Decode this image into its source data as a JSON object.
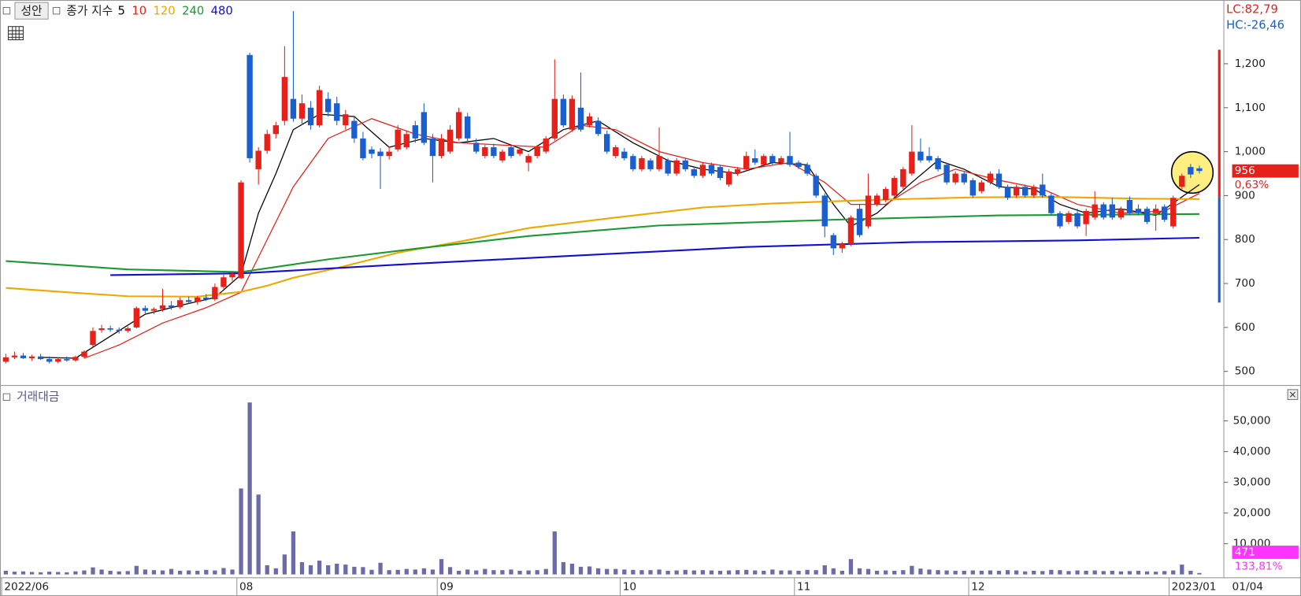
{
  "header": {
    "stock_name": "성안",
    "ma_label": "종가 지수",
    "lc_label": "LC:82,79",
    "hc_label": "HC:-26,46"
  },
  "chart_data": [
    {
      "type": "candlestick",
      "up_color": "#e8201a",
      "down_color": "#1a5fd0",
      "ylim": [
        468,
        1345
      ],
      "yticks": [
        {
          "value": 1200,
          "label": "1,200"
        },
        {
          "value": 1100,
          "label": "1,100"
        },
        {
          "value": 1000,
          "label": "1,000"
        },
        900,
        800,
        700,
        600,
        500
      ],
      "change_label": "0,63%",
      "candles": [
        [
          522,
          540,
          518,
          532
        ],
        [
          532,
          545,
          528,
          536
        ],
        [
          536,
          542,
          528,
          530
        ],
        [
          530,
          538,
          524,
          534
        ],
        [
          534,
          540,
          526,
          528
        ],
        [
          528,
          534,
          518,
          522
        ],
        [
          522,
          532,
          518,
          528
        ],
        [
          528,
          534,
          522,
          525
        ],
        [
          525,
          536,
          522,
          533
        ],
        [
          533,
          548,
          530,
          545
        ],
        [
          560,
          600,
          556,
          592
        ],
        [
          594,
          606,
          588,
          598
        ],
        [
          598,
          604,
          590,
          595
        ],
        [
          595,
          600,
          586,
          592
        ],
        [
          592,
          602,
          588,
          598
        ],
        [
          600,
          648,
          598,
          644
        ],
        [
          644,
          650,
          632,
          638
        ],
        [
          638,
          646,
          630,
          642
        ],
        [
          642,
          688,
          636,
          650
        ],
        [
          650,
          660,
          640,
          646
        ],
        [
          646,
          668,
          642,
          662
        ],
        [
          662,
          670,
          654,
          658
        ],
        [
          658,
          672,
          652,
          668
        ],
        [
          668,
          676,
          660,
          664
        ],
        [
          664,
          700,
          660,
          692
        ],
        [
          692,
          720,
          688,
          714
        ],
        [
          714,
          728,
          706,
          722
        ],
        [
          712,
          935,
          710,
          930
        ],
        [
          1220,
          1225,
          975,
          985
        ],
        [
          960,
          1010,
          925,
          1002
        ],
        [
          1002,
          1050,
          995,
          1040
        ],
        [
          1040,
          1068,
          1030,
          1060
        ],
        [
          1070,
          1240,
          1060,
          1170
        ],
        [
          1120,
          1320,
          1068,
          1075
        ],
        [
          1075,
          1130,
          1060,
          1110
        ],
        [
          1100,
          1115,
          1050,
          1060
        ],
        [
          1060,
          1150,
          1055,
          1140
        ],
        [
          1120,
          1135,
          1080,
          1090
        ],
        [
          1110,
          1125,
          1060,
          1070
        ],
        [
          1060,
          1095,
          1050,
          1085
        ],
        [
          1070,
          1080,
          1020,
          1030
        ],
        [
          1030,
          1045,
          980,
          985
        ],
        [
          1005,
          1012,
          985,
          995
        ],
        [
          1000,
          1008,
          915,
          990
        ],
        [
          990,
          1012,
          982,
          1000
        ],
        [
          1005,
          1060,
          1000,
          1050
        ],
        [
          1010,
          1048,
          1005,
          1040
        ],
        [
          1060,
          1070,
          1020,
          1030
        ],
        [
          1090,
          1110,
          1015,
          1020
        ],
        [
          1030,
          1040,
          930,
          990
        ],
        [
          990,
          1040,
          985,
          1030
        ],
        [
          1000,
          1060,
          995,
          1050
        ],
        [
          1030,
          1100,
          1025,
          1090
        ],
        [
          1080,
          1088,
          1020,
          1030
        ],
        [
          1020,
          1030,
          995,
          1000
        ],
        [
          990,
          1015,
          985,
          1010
        ],
        [
          1010,
          1018,
          985,
          990
        ],
        [
          980,
          1005,
          975,
          1000
        ],
        [
          1010,
          1015,
          985,
          990
        ],
        [
          995,
          1010,
          990,
          1005
        ],
        [
          975,
          995,
          955,
          990
        ],
        [
          990,
          1015,
          985,
          1010
        ],
        [
          1000,
          1035,
          995,
          1030
        ],
        [
          1030,
          1210,
          1025,
          1120
        ],
        [
          1120,
          1130,
          1055,
          1060
        ],
        [
          1050,
          1128,
          1045,
          1120
        ],
        [
          1100,
          1180,
          1045,
          1050
        ],
        [
          1060,
          1088,
          1055,
          1080
        ],
        [
          1070,
          1078,
          1035,
          1040
        ],
        [
          1040,
          1048,
          995,
          1000
        ],
        [
          990,
          1015,
          985,
          1010
        ],
        [
          1000,
          1008,
          980,
          985
        ],
        [
          990,
          995,
          955,
          960
        ],
        [
          960,
          990,
          955,
          985
        ],
        [
          980,
          985,
          955,
          960
        ],
        [
          960,
          1055,
          955,
          990
        ],
        [
          980,
          985,
          945,
          950
        ],
        [
          950,
          985,
          945,
          980
        ],
        [
          980,
          985,
          955,
          960
        ],
        [
          960,
          965,
          940,
          945
        ],
        [
          945,
          975,
          940,
          970
        ],
        [
          970,
          975,
          945,
          950
        ],
        [
          965,
          970,
          935,
          940
        ],
        [
          925,
          960,
          920,
          955
        ],
        [
          950,
          965,
          945,
          960
        ],
        [
          960,
          1000,
          955,
          990
        ],
        [
          985,
          1005,
          970,
          975
        ],
        [
          970,
          995,
          965,
          990
        ],
        [
          990,
          995,
          970,
          975
        ],
        [
          975,
          990,
          970,
          985
        ],
        [
          990,
          1045,
          965,
          970
        ],
        [
          975,
          980,
          960,
          965
        ],
        [
          970,
          975,
          945,
          950
        ],
        [
          945,
          950,
          895,
          900
        ],
        [
          900,
          905,
          805,
          830
        ],
        [
          810,
          815,
          765,
          780
        ],
        [
          780,
          795,
          770,
          790
        ],
        [
          790,
          855,
          785,
          850
        ],
        [
          870,
          880,
          805,
          810
        ],
        [
          830,
          950,
          825,
          900
        ],
        [
          880,
          905,
          875,
          900
        ],
        [
          890,
          920,
          885,
          915
        ],
        [
          900,
          945,
          895,
          940
        ],
        [
          920,
          965,
          915,
          960
        ],
        [
          950,
          1060,
          945,
          1000
        ],
        [
          1000,
          1030,
          975,
          980
        ],
        [
          990,
          1010,
          975,
          980
        ],
        [
          985,
          990,
          955,
          960
        ],
        [
          970,
          975,
          925,
          930
        ],
        [
          930,
          955,
          925,
          950
        ],
        [
          950,
          955,
          925,
          930
        ],
        [
          935,
          940,
          895,
          900
        ],
        [
          910,
          935,
          905,
          930
        ],
        [
          930,
          955,
          925,
          950
        ],
        [
          950,
          960,
          915,
          920
        ],
        [
          920,
          925,
          890,
          895
        ],
        [
          900,
          925,
          895,
          920
        ],
        [
          920,
          925,
          895,
          900
        ],
        [
          900,
          925,
          895,
          920
        ],
        [
          925,
          950,
          895,
          900
        ],
        [
          900,
          905,
          855,
          860
        ],
        [
          860,
          865,
          825,
          830
        ],
        [
          840,
          865,
          835,
          860
        ],
        [
          860,
          870,
          825,
          830
        ],
        [
          835,
          870,
          808,
          865
        ],
        [
          850,
          910,
          845,
          880
        ],
        [
          880,
          885,
          845,
          850
        ],
        [
          880,
          895,
          845,
          850
        ],
        [
          850,
          875,
          845,
          870
        ],
        [
          890,
          898,
          855,
          860
        ],
        [
          870,
          880,
          855,
          860
        ],
        [
          870,
          875,
          835,
          840
        ],
        [
          860,
          880,
          820,
          870
        ],
        [
          875,
          880,
          840,
          845
        ],
        [
          830,
          900,
          825,
          895
        ],
        [
          920,
          950,
          915,
          945
        ],
        [
          965,
          972,
          940,
          948
        ],
        [
          962,
          968,
          950,
          956
        ]
      ],
      "series": [
        {
          "name": "5",
          "color": "#000000",
          "x": [
            4,
            8,
            12,
            16,
            20,
            24,
            27,
            29,
            31,
            33,
            36,
            40,
            44,
            48,
            52,
            56,
            60,
            64,
            68,
            72,
            76,
            80,
            84,
            88,
            92,
            95,
            97,
            100,
            104,
            107,
            110,
            114,
            118,
            121,
            124,
            128,
            132,
            137
          ],
          "values": [
            532,
            530,
            580,
            630,
            650,
            668,
            720,
            860,
            950,
            1050,
            1085,
            1080,
            1010,
            1030,
            1020,
            1030,
            1000,
            1050,
            1070,
            1020,
            980,
            960,
            950,
            975,
            970,
            880,
            830,
            860,
            930,
            980,
            960,
            920,
            915,
            880,
            860,
            870,
            855,
            925
          ]
        },
        {
          "name": "10",
          "color": "#e8201a",
          "x": [
            9,
            13,
            18,
            23,
            27,
            30,
            33,
            37,
            42,
            47,
            52,
            57,
            62,
            66,
            70,
            75,
            80,
            85,
            90,
            94,
            97,
            101,
            105,
            109,
            114,
            119,
            123,
            128,
            133,
            137
          ],
          "values": [
            530,
            560,
            610,
            645,
            680,
            800,
            920,
            1030,
            1075,
            1040,
            1020,
            1015,
            1010,
            1060,
            1050,
            1000,
            975,
            960,
            975,
            930,
            880,
            880,
            930,
            960,
            935,
            915,
            880,
            860,
            865,
            905
          ]
        },
        {
          "name": "120",
          "color": "#f0a800",
          "x": [
            0,
            7,
            14,
            22,
            27,
            30,
            33,
            38,
            45,
            52,
            60,
            70,
            80,
            88,
            95,
            103,
            111,
            120,
            130,
            137
          ],
          "values": [
            690,
            680,
            671,
            670,
            681,
            695,
            713,
            735,
            770,
            795,
            826,
            850,
            873,
            882,
            887,
            892,
            896,
            897,
            893,
            892
          ]
        },
        {
          "name": "240",
          "color": "#1a9a30",
          "x": [
            0,
            14,
            27,
            37,
            47,
            60,
            75,
            95,
            114,
            137
          ],
          "values": [
            751,
            732,
            726,
            755,
            779,
            808,
            832,
            845,
            855,
            858
          ]
        },
        {
          "name": "480",
          "color": "#1010d0",
          "x": [
            12,
            27,
            47,
            66,
            85,
            104,
            123,
            137
          ],
          "values": [
            719,
            723,
            745,
            764,
            783,
            794,
            798,
            804
          ]
        }
      ]
    },
    {
      "type": "bar",
      "title": "거래대금",
      "color": "#6b6ba8",
      "ylim": [
        0,
        61000
      ],
      "yticks": [
        {
          "value": 50000,
          "label": "50,000"
        },
        {
          "value": 40000,
          "label": "40,000"
        },
        {
          "value": 30000,
          "label": "30,000"
        },
        {
          "value": 20000,
          "label": "20,000"
        },
        {
          "value": 10000,
          "label": "10,000"
        }
      ],
      "change_label": "133,81%",
      "xticks": [
        {
          "value": 0,
          "label": "2022/06"
        },
        {
          "value": 27,
          "label": "08"
        },
        {
          "value": 50,
          "label": "09"
        },
        {
          "value": 71,
          "label": "10"
        },
        {
          "value": 91,
          "label": "11"
        },
        {
          "value": 111,
          "label": "12"
        },
        {
          "value": 134,
          "label": "2023/01"
        }
      ],
      "date_label": "01/04",
      "values": [
        1200,
        900,
        1000,
        800,
        700,
        900,
        800,
        700,
        1000,
        1300,
        2300,
        1600,
        1200,
        1000,
        1100,
        2800,
        1600,
        1400,
        1300,
        1800,
        1200,
        1300,
        1200,
        1500,
        1300,
        2100,
        1600,
        28000,
        56000,
        26000,
        3000,
        2000,
        6500,
        14000,
        4000,
        3000,
        4500,
        3000,
        3500,
        3200,
        2500,
        2400,
        1500,
        3800,
        1400,
        1500,
        1800,
        1600,
        2000,
        1600,
        5000,
        2400,
        1200,
        1600,
        1300,
        1800,
        1400,
        1400,
        1600,
        1200,
        1300,
        1400,
        1800,
        14000,
        4000,
        3500,
        2500,
        2600,
        2000,
        1800,
        1800,
        1600,
        1500,
        1400,
        1400,
        1600,
        1200,
        1300,
        1500,
        1300,
        1400,
        1300,
        1200,
        1300,
        1400,
        1500,
        1300,
        1200,
        1600,
        1300,
        1300,
        1200,
        1500,
        1400,
        3000,
        2000,
        1200,
        5000,
        2000,
        1800,
        1200,
        1300,
        1200,
        1400,
        2800,
        1900,
        1600,
        1400,
        1300,
        1200,
        1200,
        1300,
        1200,
        1300,
        1200,
        1400,
        1300,
        1000,
        1200,
        1100,
        1500,
        1400,
        1100,
        1300,
        1200,
        1300,
        1100,
        1200,
        1000,
        1100,
        1200,
        1000,
        900,
        1100,
        1300,
        3200,
        1200,
        471
      ]
    }
  ]
}
